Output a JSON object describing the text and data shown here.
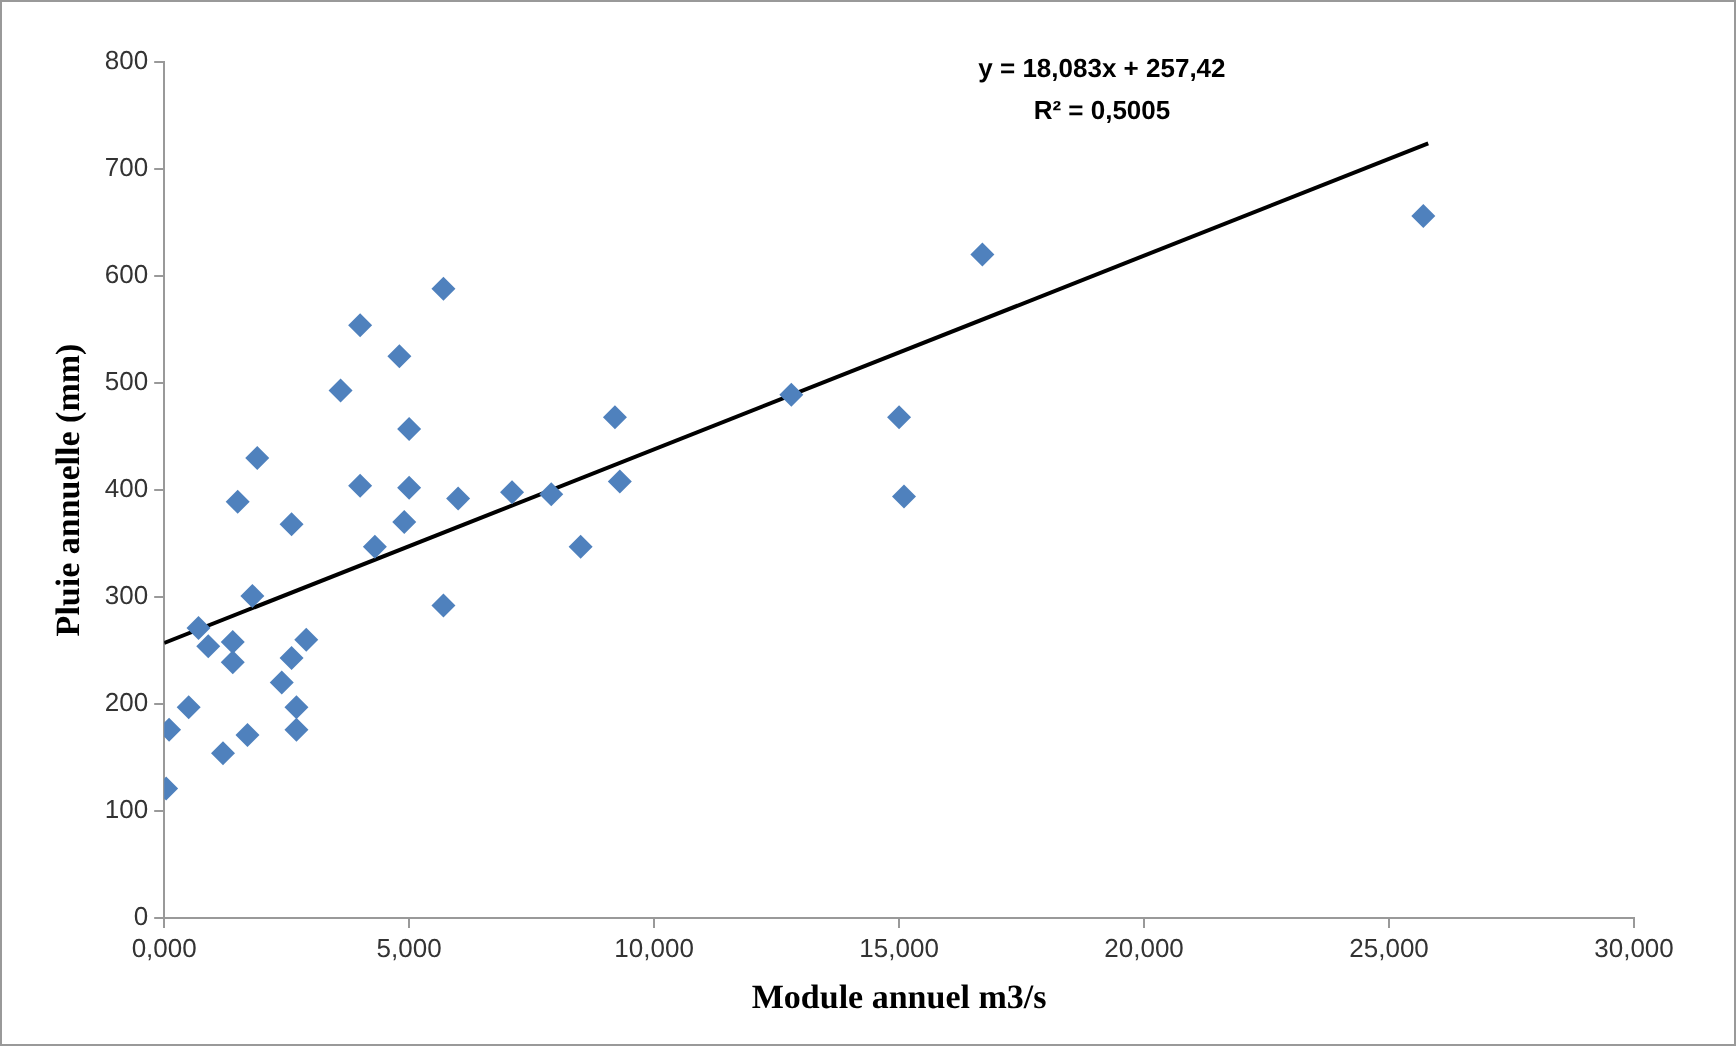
{
  "chart_data": {
    "type": "scatter",
    "xlabel": "Module annuel m3/s",
    "ylabel": "Pluie annuelle (mm)",
    "annotations": [
      "y = 18,083x + 257,42",
      "R² = 0,5005"
    ],
    "series": [
      {
        "color": "#4f81bd",
        "x": [
          0.04,
          0.1,
          0.5,
          0.7,
          0.9,
          1.4,
          1.4,
          1.2,
          1.7,
          1.5,
          1.9,
          1.8,
          2.4,
          2.6,
          2.7,
          2.7,
          2.9,
          2.6,
          3.6,
          4.0,
          4.8,
          4.0,
          4.3,
          4.9,
          5.0,
          5.0,
          5.7,
          5.7,
          6.0,
          7.1,
          7.9,
          8.5,
          9.2,
          9.3,
          12.8,
          15.0,
          15.1,
          16.7,
          25.7
        ],
        "values": [
          121,
          176,
          197,
          271,
          254,
          239,
          258,
          154,
          171,
          389,
          430,
          301,
          220,
          243,
          197,
          176,
          260,
          368,
          493,
          554,
          525,
          404,
          347,
          370,
          457,
          402,
          588,
          292,
          392,
          398,
          396,
          347,
          468,
          408,
          489,
          468,
          394,
          620,
          656
        ]
      },
      {
        "type": "line",
        "marker": "none",
        "color": "#000000",
        "x": [
          0,
          25.8
        ],
        "values": [
          257,
          724
        ]
      }
    ],
    "xlim": [
      0,
      30
    ],
    "xticks": [
      {
        "value": 0,
        "label": "0,000"
      },
      {
        "value": 5,
        "label": "5,000"
      },
      {
        "value": 10,
        "label": "10,000"
      },
      {
        "value": 15,
        "label": "15,000"
      },
      {
        "value": 20,
        "label": "20,000"
      },
      {
        "value": 25,
        "label": "25,000"
      },
      {
        "value": 30,
        "label": "30,000"
      }
    ],
    "ylim": [
      0,
      800
    ],
    "yticks": [
      0,
      100,
      200,
      300,
      400,
      500,
      600,
      700,
      800
    ],
    "grid": false,
    "legend": false,
    "marker": "diamond",
    "line_style": "solid"
  }
}
